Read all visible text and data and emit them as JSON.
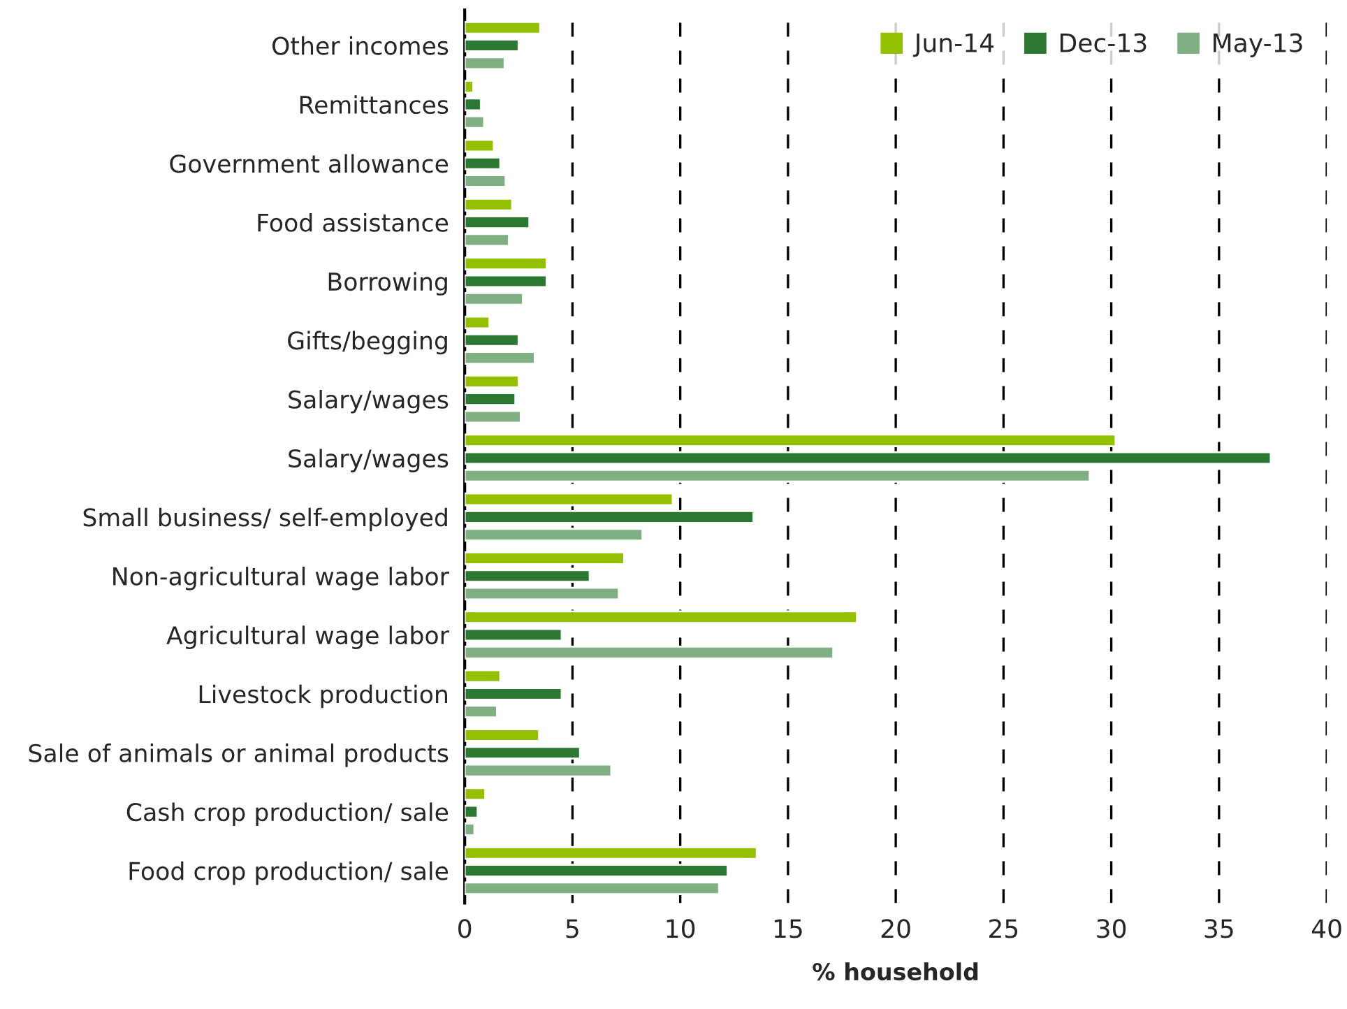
{
  "chart_data": {
    "type": "bar",
    "orientation": "horizontal",
    "xlabel": "% household",
    "categories": [
      "Other incomes",
      "Remittances",
      "Government allowance",
      "Food assistance",
      "Borrowing",
      "Gifts/begging",
      "Salary/wages",
      "Salary/wages",
      "Small business/ self-employed",
      "Non-agricultural wage labor",
      "Agricultural wage labor",
      "Livestock production",
      "Sale of animals or animal products",
      "Cash crop production/ sale",
      "Food crop production/ sale"
    ],
    "series": [
      {
        "name": "Jun-14",
        "color": "#93c000",
        "values": [
          3.5,
          0.4,
          1.35,
          2.2,
          3.8,
          1.15,
          2.5,
          30.2,
          9.65,
          7.4,
          18.2,
          1.65,
          3.45,
          0.95,
          13.55
        ]
      },
      {
        "name": "Dec-13",
        "color": "#2c7832",
        "values": [
          2.5,
          0.75,
          1.65,
          3.0,
          3.8,
          2.5,
          2.35,
          37.4,
          13.4,
          5.8,
          4.5,
          4.5,
          5.35,
          0.6,
          12.2
        ]
      },
      {
        "name": "May-13",
        "color": "#80af83",
        "values": [
          1.85,
          0.9,
          1.9,
          2.05,
          2.7,
          3.25,
          2.6,
          29.0,
          8.25,
          7.15,
          17.1,
          1.5,
          6.8,
          0.45,
          11.8
        ]
      }
    ],
    "xlim": [
      0,
      40
    ],
    "xticks": [
      0,
      5,
      10,
      15,
      20,
      25,
      30,
      35,
      40
    ],
    "grid": "x",
    "line_style": "dashed",
    "legend": "top right"
  }
}
